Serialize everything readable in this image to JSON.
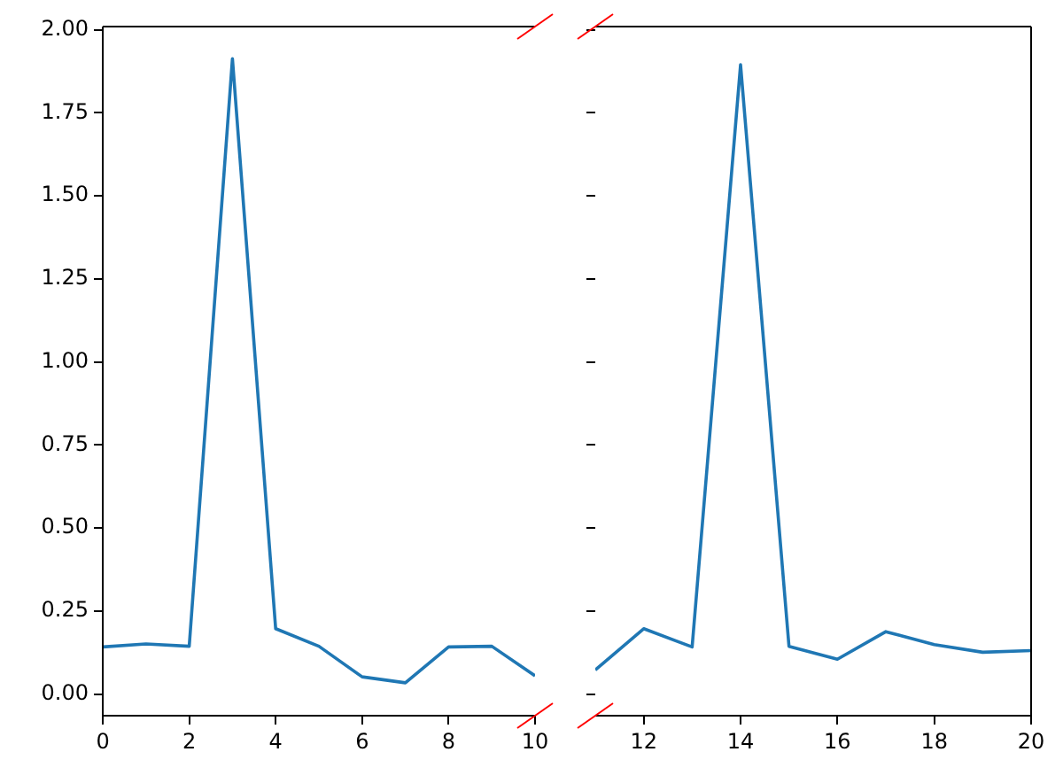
{
  "chart_data": [
    {
      "type": "line",
      "x": [
        0,
        1,
        2,
        3,
        4,
        5,
        6,
        7,
        8,
        9,
        10
      ],
      "series": [
        {
          "color": "#1f77b4",
          "values": [
            0.142,
            0.151,
            0.144,
            1.913,
            0.197,
            0.144,
            0.052,
            0.034,
            0.142,
            0.144,
            0.055
          ]
        }
      ],
      "xlim": [
        0,
        10
      ],
      "xticks": [
        0,
        2,
        4,
        6,
        8,
        10
      ],
      "ylim": [
        -0.065,
        2.01
      ],
      "yticks": [
        {
          "value": 0,
          "label": "0.00"
        },
        {
          "value": 0.25,
          "label": "0.25"
        },
        {
          "value": 0.5,
          "label": "0.50"
        },
        {
          "value": 0.75,
          "label": "0.75"
        },
        {
          "value": 1,
          "label": "1.00"
        },
        {
          "value": 1.25,
          "label": "1.25"
        },
        {
          "value": 1.5,
          "label": "1.50"
        },
        {
          "value": 1.75,
          "label": "1.75"
        },
        {
          "value": 2,
          "label": "2.00"
        }
      ],
      "grid": false,
      "legend": false
    },
    {
      "type": "line",
      "x": [
        11,
        12,
        13,
        14,
        15,
        16,
        17,
        18,
        19,
        20
      ],
      "series": [
        {
          "color": "#1f77b4",
          "values": [
            0.073,
            0.197,
            0.142,
            1.895,
            0.144,
            0.105,
            0.188,
            0.149,
            0.126,
            0.131
          ]
        }
      ],
      "xlim": [
        11,
        20
      ],
      "xticks": [
        12,
        14,
        16,
        18,
        20
      ],
      "ylim": [
        -0.065,
        2.01
      ],
      "yticks": [
        {
          "value": 0,
          "label": null
        },
        {
          "value": 0.25,
          "label": null
        },
        {
          "value": 0.5,
          "label": null
        },
        {
          "value": 0.75,
          "label": null
        },
        {
          "value": 1,
          "label": null
        },
        {
          "value": 1.25,
          "label": null
        },
        {
          "value": 1.5,
          "label": null
        },
        {
          "value": 1.75,
          "label": null
        },
        {
          "value": 2,
          "label": null
        }
      ],
      "tick_labels": "x",
      "grid": false,
      "legend": false
    }
  ]
}
